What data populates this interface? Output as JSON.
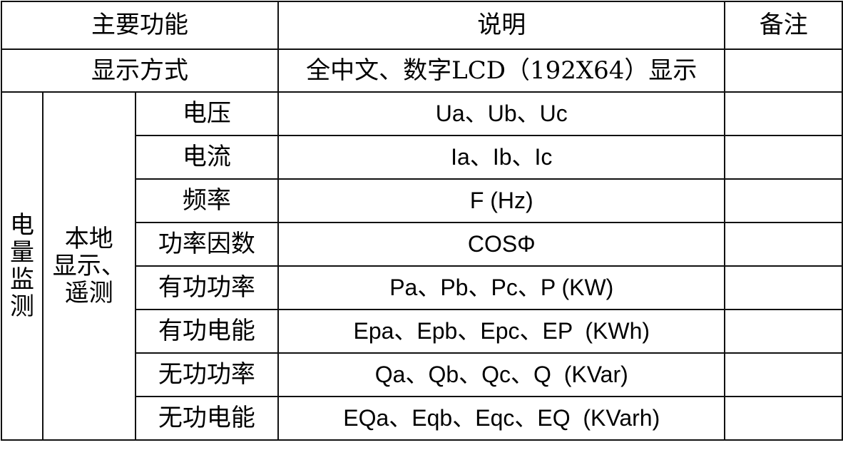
{
  "header": {
    "function": "主要功能",
    "description": "说明",
    "remarks": "备注"
  },
  "display": {
    "label": "显示方式",
    "description": "全中文、数字LCD（192X64）显示",
    "remarks": ""
  },
  "group": {
    "category": "电\n量\n监\n测",
    "subcategory": "本地\n显示、\n遥测"
  },
  "rows": [
    {
      "item": "电压",
      "description": "Ua、Ub、Uc",
      "remarks": ""
    },
    {
      "item": "电流",
      "description": "Ia、Ib、Ic",
      "remarks": ""
    },
    {
      "item": "频率",
      "description": "F (Hz)",
      "remarks": ""
    },
    {
      "item": "功率因数",
      "description": "COSΦ",
      "remarks": ""
    },
    {
      "item": "有功功率",
      "description": "Pa、Pb、Pc、P (KW)",
      "remarks": ""
    },
    {
      "item": "有功电能",
      "description": "Epa、Epb、Epc、EP  (KWh)",
      "remarks": ""
    },
    {
      "item": "无功功率",
      "description": "Qa、Qb、Qc、Q  (KVar)",
      "remarks": ""
    },
    {
      "item": "无功电能",
      "description": "EQa、Eqb、Eqc、EQ  (KVarh)",
      "remarks": ""
    }
  ]
}
